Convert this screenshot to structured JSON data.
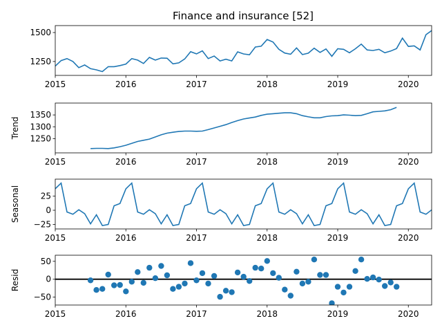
{
  "title": "Finance and insurance  [52]",
  "colors": {
    "line": "#1f77b4",
    "axis": "#000000",
    "zero": "#000000"
  },
  "chart_data": [
    {
      "type": "line",
      "panel": "observed",
      "ylabel": "",
      "xlim": [
        2015.0,
        2020.33
      ],
      "ylim": [
        1130,
        1560
      ],
      "yticks": [
        1250,
        1500
      ],
      "xticks": [
        "2015",
        "2016",
        "2017",
        "2018",
        "2019",
        "2020"
      ],
      "x_start": "2015-01",
      "frequency": "monthly",
      "values": [
        1210,
        1258,
        1275,
        1250,
        1197,
        1220,
        1188,
        1178,
        1163,
        1205,
        1205,
        1215,
        1228,
        1275,
        1262,
        1233,
        1285,
        1262,
        1280,
        1278,
        1230,
        1238,
        1272,
        1335,
        1316,
        1342,
        1275,
        1297,
        1255,
        1270,
        1255,
        1333,
        1315,
        1308,
        1375,
        1382,
        1440,
        1418,
        1355,
        1323,
        1313,
        1367,
        1310,
        1322,
        1365,
        1328,
        1358,
        1295,
        1360,
        1355,
        1325,
        1360,
        1400,
        1350,
        1345,
        1355,
        1325,
        1340,
        1362,
        1452,
        1380,
        1385,
        1350,
        1482,
        1518
      ]
    },
    {
      "type": "line",
      "panel": "trend",
      "ylabel": "Trend",
      "xlim": [
        2015.0,
        2020.33
      ],
      "ylim": [
        1190,
        1400
      ],
      "yticks": [
        1250,
        1300,
        1350
      ],
      "xticks": [
        "2015",
        "2016",
        "2017",
        "2018",
        "2019",
        "2020"
      ],
      "x_start": "2015-07",
      "frequency": "monthly",
      "values": [
        1208,
        1209,
        1209,
        1208,
        1211,
        1216,
        1222,
        1230,
        1238,
        1243,
        1248,
        1257,
        1266,
        1273,
        1277,
        1280,
        1282,
        1282,
        1281,
        1282,
        1288,
        1295,
        1302,
        1309,
        1318,
        1326,
        1333,
        1337,
        1341,
        1348,
        1353,
        1355,
        1357,
        1359,
        1359,
        1355,
        1347,
        1342,
        1338,
        1338,
        1343,
        1346,
        1347,
        1350,
        1349,
        1347,
        1348,
        1355,
        1363,
        1365,
        1367,
        1372,
        1382
      ]
    },
    {
      "type": "line",
      "panel": "seasonal",
      "ylabel": "Seasonal",
      "xlim": [
        2015.0,
        2020.33
      ],
      "ylim": [
        -33,
        55
      ],
      "yticks": [
        -25,
        0,
        25
      ],
      "xticks": [
        "2015",
        "2016",
        "2017",
        "2018",
        "2019",
        "2020"
      ],
      "x_start": "2015-01",
      "frequency": "monthly",
      "pattern": [
        38,
        48,
        -3,
        -7,
        1,
        -6,
        -24,
        -8,
        -27,
        -25,
        8,
        12
      ],
      "months": 65
    },
    {
      "type": "scatter",
      "panel": "resid",
      "ylabel": "Resid",
      "xlim": [
        2015.0,
        2020.33
      ],
      "ylim": [
        -72,
        67
      ],
      "yticks": [
        -50,
        0,
        50
      ],
      "xticks": [
        "2015",
        "2016",
        "2017",
        "2018",
        "2019",
        "2020"
      ],
      "x_start": "2015-07",
      "frequency": "monthly",
      "values": [
        -3,
        -30,
        -27,
        13,
        -17,
        -16,
        -34,
        -7,
        20,
        -10,
        32,
        3,
        37,
        11,
        -27,
        -21,
        -12,
        45,
        -3,
        17,
        -12,
        9,
        -49,
        -32,
        -36,
        19,
        7,
        -5,
        32,
        30,
        51,
        17,
        4,
        -29,
        -46,
        21,
        -12,
        -7,
        55,
        12,
        12,
        -67,
        -21,
        -37,
        -21,
        23,
        55,
        1,
        5,
        -1,
        -19,
        -9,
        -21
      ],
      "zero_line": 0
    }
  ]
}
